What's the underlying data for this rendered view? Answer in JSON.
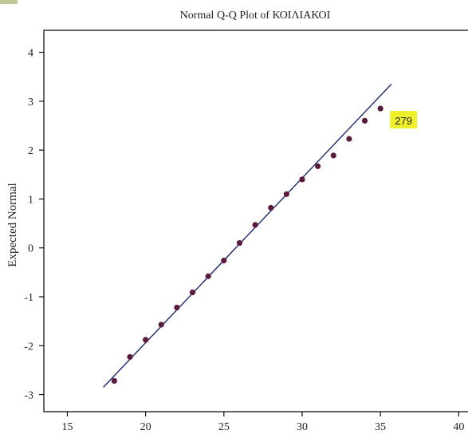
{
  "chart_data": {
    "type": "scatter",
    "title": "Normal Q-Q Plot of ΚΟΙΛΙΑΚΟΙ",
    "xlabel": "",
    "ylabel": "Expected Normal",
    "xlim": [
      13.5,
      41
    ],
    "ylim": [
      -3.35,
      4.45
    ],
    "x_ticks": [
      15,
      20,
      25,
      30,
      35,
      40
    ],
    "y_ticks": [
      -3,
      -2,
      -1,
      0,
      1,
      2,
      3,
      4
    ],
    "x_tick_labels": [
      "15",
      "20",
      "25",
      "30",
      "35",
      "40"
    ],
    "y_tick_labels": [
      "-3",
      "-2",
      "-1",
      "0",
      "1",
      "2",
      "3",
      "4"
    ],
    "grid": false,
    "legend": "none",
    "series": [
      {
        "points": [
          {
            "x": 18,
            "y": -2.72
          },
          {
            "x": 19,
            "y": -2.23
          },
          {
            "x": 20,
            "y": -1.88
          },
          {
            "x": 21,
            "y": -1.57
          },
          {
            "x": 22,
            "y": -1.22
          },
          {
            "x": 23,
            "y": -0.91
          },
          {
            "x": 24,
            "y": -0.58
          },
          {
            "x": 25,
            "y": -0.26
          },
          {
            "x": 26,
            "y": 0.1
          },
          {
            "x": 27,
            "y": 0.47
          },
          {
            "x": 28,
            "y": 0.82
          },
          {
            "x": 29,
            "y": 1.1
          },
          {
            "x": 30,
            "y": 1.4
          },
          {
            "x": 31,
            "y": 1.67
          },
          {
            "x": 32,
            "y": 1.89
          },
          {
            "x": 33,
            "y": 2.23
          },
          {
            "x": 34,
            "y": 2.6
          },
          {
            "x": 35,
            "y": 2.85
          }
        ],
        "color": "#5a1a3c"
      }
    ],
    "reference_line": {
      "x_start": 17.3,
      "x_end": 35.7,
      "y_start": -2.85,
      "y_end": 3.35,
      "color": "#1a2a6a"
    },
    "annotations": [
      {
        "text": "279",
        "x": 35,
        "y": 2.85,
        "background": "#eef02a"
      }
    ]
  }
}
